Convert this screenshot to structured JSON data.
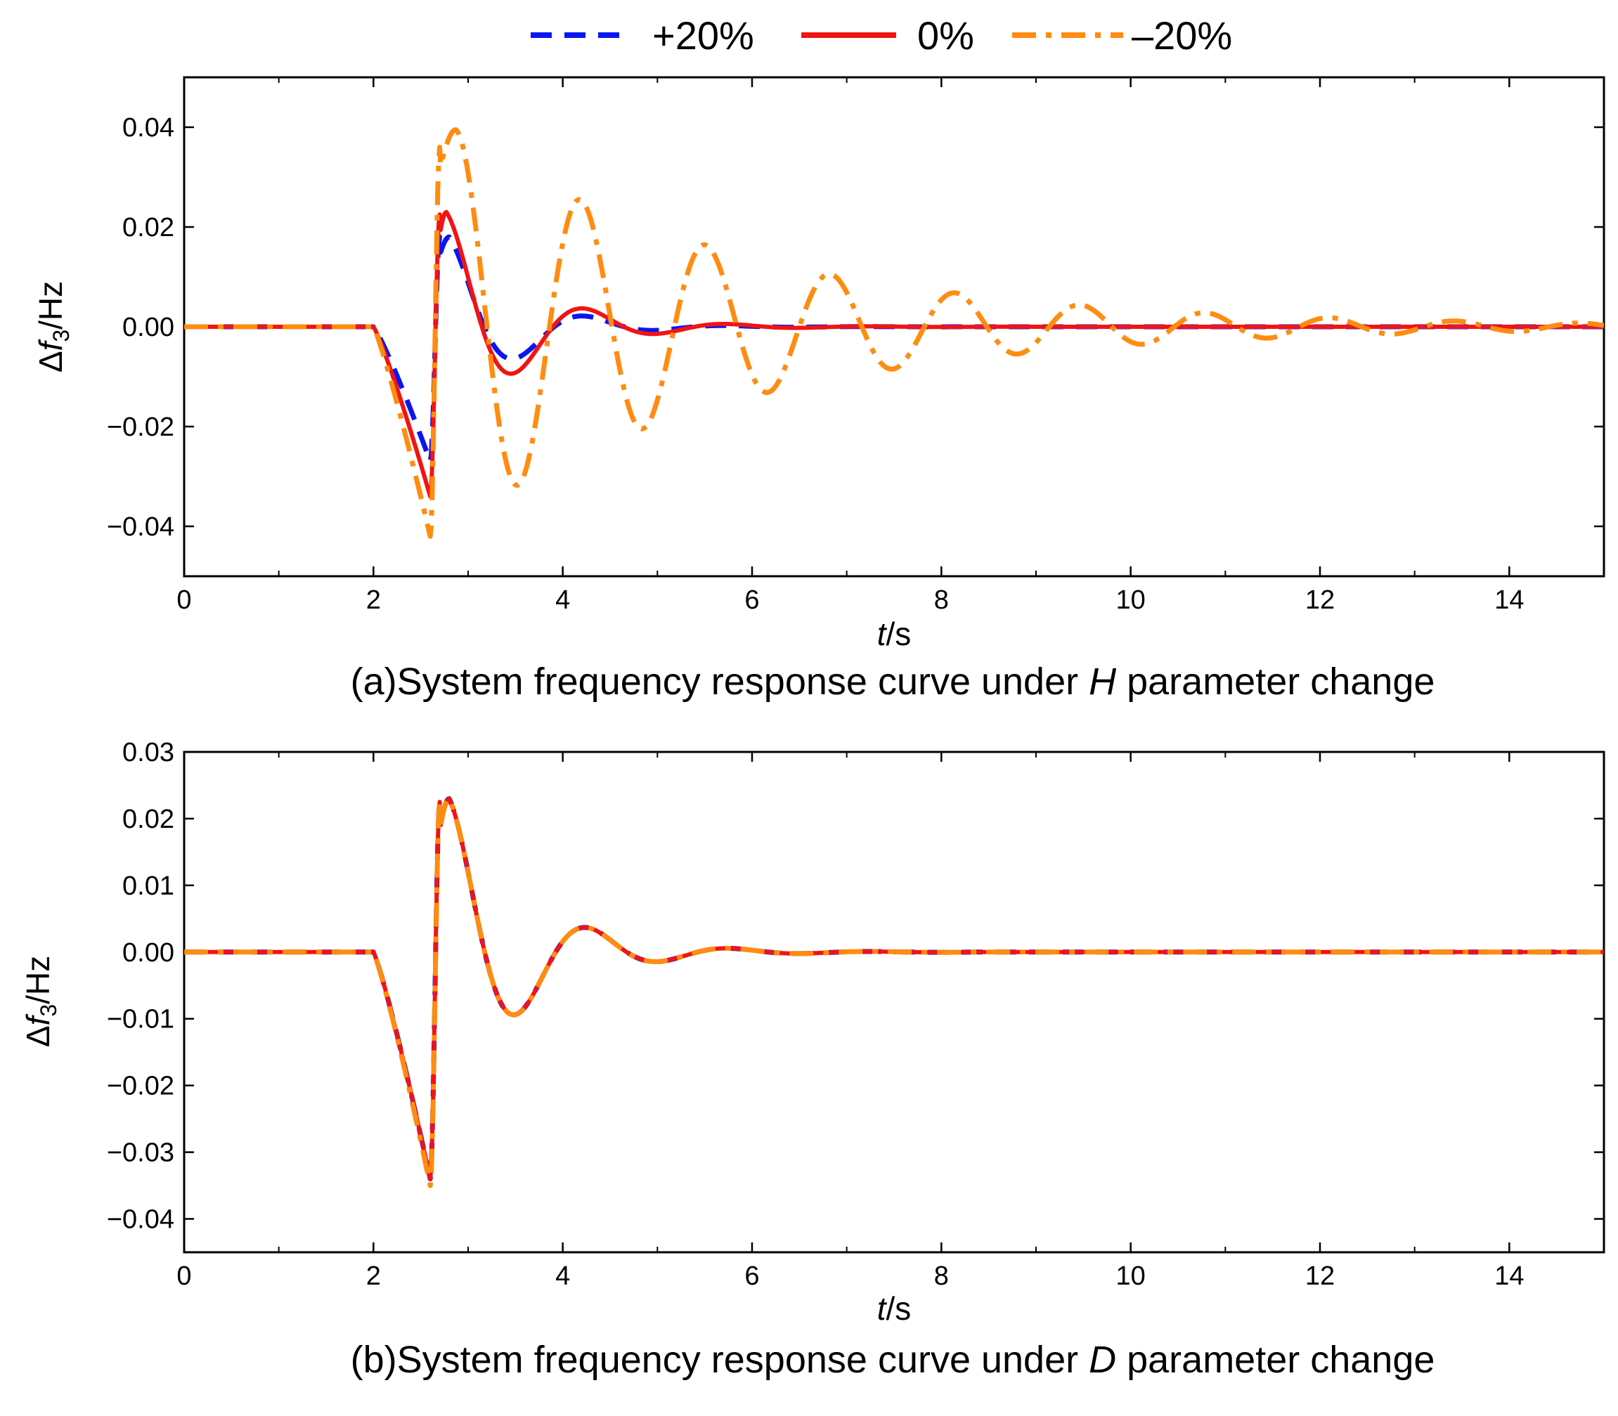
{
  "legend": {
    "items": [
      {
        "label": "+20%",
        "color": "#0a16f0",
        "style": "dashed"
      },
      {
        "label": "0%",
        "color": "#f01414",
        "style": "solid"
      },
      {
        "label": "–20%",
        "color": "#ff8c10",
        "style": "dashdot"
      }
    ]
  },
  "chart_data": [
    {
      "type": "line",
      "title": "(a)System frequency response curve under H parameter change",
      "caption": {
        "prefix": "(a)System frequency response curve under ",
        "param": "H",
        "suffix": " parameter change"
      },
      "ylabel": {
        "delta": "Δ",
        "var": "f",
        "sub": "3",
        "unit": "/Hz"
      },
      "xlabel": {
        "var": "t",
        "unit": "/s"
      },
      "xlim": [
        0,
        15
      ],
      "ylim": [
        -0.05,
        0.05
      ],
      "xticks": [
        0,
        2,
        4,
        6,
        8,
        10,
        12,
        14
      ],
      "xtick_labels": [
        "0",
        "2",
        "4",
        "6",
        "8",
        "10",
        "12",
        "14"
      ],
      "yticks": [
        -0.04,
        -0.02,
        0.0,
        0.02,
        0.04
      ],
      "ytick_labels": [
        "−0.04",
        "−0.02",
        "0.00",
        "0.02",
        "0.04"
      ],
      "series": [
        {
          "name": "+20%",
          "color": "#0a16f0",
          "style": "dashed",
          "segments": [
            {
              "t0": 0,
              "t1": 2.0,
              "shape": "const",
              "v": 0
            },
            {
              "t0": 2.0,
              "t1": 2.6,
              "shape": "cubic",
              "v0": 0,
              "v1": -0.027
            },
            {
              "t0": 2.6,
              "t1": 2.7,
              "shape": "smooth",
              "v0": -0.027,
              "v1": 0.018
            },
            {
              "t0": 2.7,
              "t1": 15,
              "shape": "decay",
              "amp": 0.018,
              "tpk": 2.8,
              "period": 1.48,
              "tau": 0.68
            }
          ]
        },
        {
          "name": "0%",
          "color": "#f01414",
          "style": "solid",
          "segments": [
            {
              "t0": 0,
              "t1": 2.0,
              "shape": "const",
              "v": 0
            },
            {
              "t0": 2.0,
              "t1": 2.6,
              "shape": "cubic",
              "v0": 0,
              "v1": -0.034
            },
            {
              "t0": 2.6,
              "t1": 2.7,
              "shape": "smooth",
              "v0": -0.034,
              "v1": 0.0225
            },
            {
              "t0": 2.7,
              "t1": 15,
              "shape": "decay",
              "amp": 0.023,
              "tpk": 2.77,
              "period": 1.5,
              "tau": 0.8
            }
          ]
        },
        {
          "name": "–20%",
          "color": "#ff8c10",
          "style": "dashdot",
          "segments": [
            {
              "t0": 0,
              "t1": 2.0,
              "shape": "const",
              "v": 0
            },
            {
              "t0": 2.0,
              "t1": 2.6,
              "shape": "cubic",
              "v0": 0,
              "v1": -0.042
            },
            {
              "t0": 2.6,
              "t1": 2.7,
              "shape": "smooth",
              "v0": -0.042,
              "v1": 0.036
            },
            {
              "t0": 2.7,
              "t1": 15,
              "shape": "decay",
              "amp": 0.0395,
              "tpk": 2.87,
              "period": 1.32,
              "tau": 3.0
            }
          ]
        }
      ]
    },
    {
      "type": "line",
      "title": "(b)System frequency response curve under D parameter change",
      "caption": {
        "prefix": "(b)System frequency response curve under ",
        "param": "D",
        "suffix": " parameter change"
      },
      "ylabel": {
        "delta": "Δ",
        "var": "f",
        "sub": "3",
        "unit": "/Hz"
      },
      "xlabel": {
        "var": "t",
        "unit": "/s"
      },
      "xlim": [
        0,
        15
      ],
      "ylim": [
        -0.045,
        0.03
      ],
      "xticks": [
        0,
        2,
        4,
        6,
        8,
        10,
        12,
        14
      ],
      "xtick_labels": [
        "0",
        "2",
        "4",
        "6",
        "8",
        "10",
        "12",
        "14"
      ],
      "yticks": [
        -0.04,
        -0.03,
        -0.02,
        -0.01,
        0.0,
        0.01,
        0.02,
        0.03
      ],
      "ytick_labels": [
        "−0.04",
        "−0.03",
        "−0.02",
        "−0.01",
        "0.00",
        "0.01",
        "0.02",
        "0.03"
      ],
      "series": [
        {
          "name": "+20%",
          "color": "#0a16f0",
          "style": "dashed",
          "segments": [
            {
              "t0": 0,
              "t1": 2.0,
              "shape": "const",
              "v": 0
            },
            {
              "t0": 2.0,
              "t1": 2.6,
              "shape": "cubic",
              "v0": 0,
              "v1": -0.034
            },
            {
              "t0": 2.6,
              "t1": 2.7,
              "shape": "smooth",
              "v0": -0.034,
              "v1": 0.0225
            },
            {
              "t0": 2.7,
              "t1": 15,
              "shape": "decay",
              "amp": 0.023,
              "tpk": 2.8,
              "period": 1.5,
              "tau": 0.8
            }
          ]
        },
        {
          "name": "0%",
          "color": "#f01414",
          "style": "solid",
          "segments": [
            {
              "t0": 0,
              "t1": 2.0,
              "shape": "const",
              "v": 0
            },
            {
              "t0": 2.0,
              "t1": 2.6,
              "shape": "cubic",
              "v0": 0,
              "v1": -0.034
            },
            {
              "t0": 2.6,
              "t1": 2.7,
              "shape": "smooth",
              "v0": -0.034,
              "v1": 0.0225
            },
            {
              "t0": 2.7,
              "t1": 15,
              "shape": "decay",
              "amp": 0.023,
              "tpk": 2.8,
              "period": 1.5,
              "tau": 0.8
            }
          ]
        },
        {
          "name": "–20%",
          "color": "#ff8c10",
          "style": "dashdot",
          "segments": [
            {
              "t0": 0,
              "t1": 2.0,
              "shape": "const",
              "v": 0
            },
            {
              "t0": 2.0,
              "t1": 2.6,
              "shape": "cubic",
              "v0": 0,
              "v1": -0.035
            },
            {
              "t0": 2.6,
              "t1": 2.7,
              "shape": "smooth",
              "v0": -0.035,
              "v1": 0.0225
            },
            {
              "t0": 2.7,
              "t1": 15,
              "shape": "decay",
              "amp": 0.023,
              "tpk": 2.8,
              "period": 1.5,
              "tau": 0.8
            }
          ]
        }
      ]
    }
  ]
}
